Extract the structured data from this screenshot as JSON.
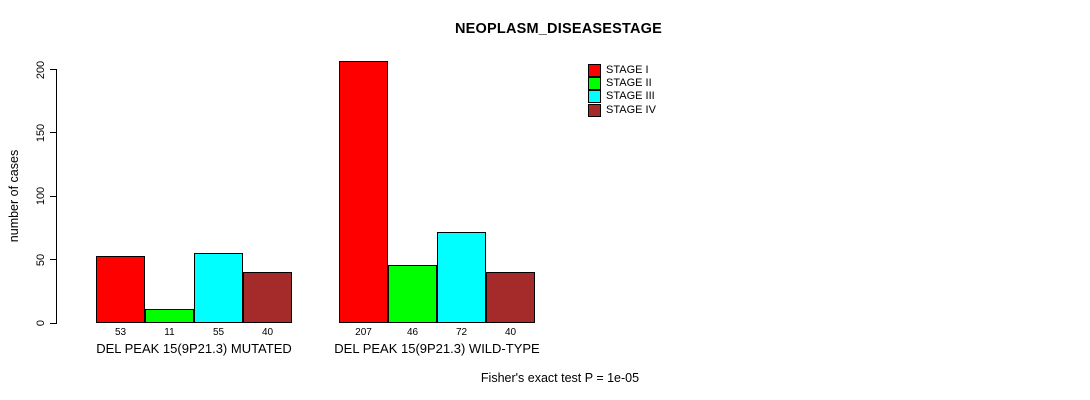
{
  "chart_data": {
    "type": "bar",
    "title": "NEOPLASM_DISEASESTAGE",
    "ylabel": "number of cases",
    "xlabel": "",
    "ylim": [
      0,
      200
    ],
    "yticks": [
      0,
      50,
      100,
      150,
      200
    ],
    "grid": false,
    "legend_position": "top-right",
    "groups": [
      "DEL PEAK 15(9P21.3) MUTATED",
      "DEL PEAK 15(9P21.3) WILD-TYPE"
    ],
    "series": [
      {
        "name": "STAGE I",
        "color": "#FF0000",
        "values": [
          53,
          207
        ]
      },
      {
        "name": "STAGE II",
        "color": "#00FF00",
        "values": [
          11,
          46
        ]
      },
      {
        "name": "STAGE III",
        "color": "#00FFFF",
        "values": [
          55,
          72
        ]
      },
      {
        "name": "STAGE IV",
        "color": "#A52A2A",
        "values": [
          40,
          40
        ]
      }
    ],
    "bar_value_labels": [
      [
        53,
        11,
        55,
        40
      ],
      [
        207,
        46,
        72,
        40
      ]
    ],
    "annotation": "Fisher's exact test P = 1e-05"
  }
}
